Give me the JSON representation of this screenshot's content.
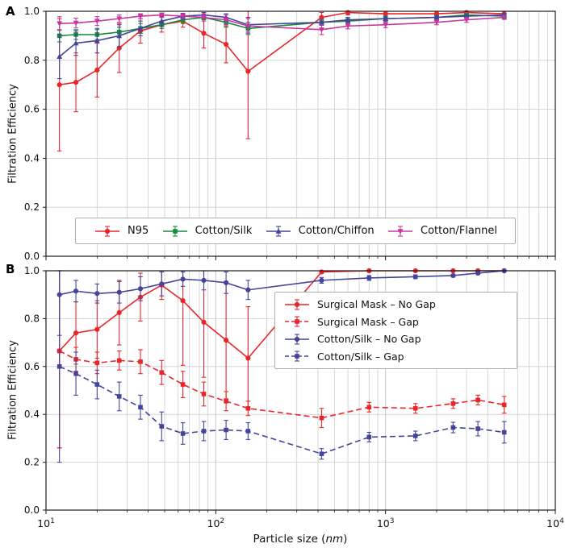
{
  "figure": {
    "panel_a_label": "A",
    "panel_b_label": "B",
    "y_axis_label": "Filtration Efficiency",
    "x_axis_label_prefix": "Particle size (",
    "x_axis_label_unit": "nm",
    "x_axis_label_suffix": ")"
  },
  "chart_data": [
    {
      "type": "line",
      "panel": "A",
      "xscale": "log",
      "xlim": [
        10,
        10000
      ],
      "ylim": [
        0.0,
        1.0
      ],
      "grid": true,
      "legend_position": "inside-bottom-center",
      "yticks": [
        0.0,
        0.2,
        0.4,
        0.6,
        0.8,
        1.0
      ],
      "ytick_labels": [
        "0.0",
        "0.2",
        "0.4",
        "0.6",
        "0.8",
        "1.0"
      ],
      "xticks": [
        10,
        100,
        1000,
        10000
      ],
      "xtick_labels": [
        {
          "base": "10",
          "exp": "1"
        },
        {
          "base": "10",
          "exp": "2"
        },
        {
          "base": "10",
          "exp": "3"
        },
        {
          "base": "10",
          "exp": "4"
        }
      ],
      "show_x_tick_labels": false,
      "series": [
        {
          "name": "N95",
          "color": "#e8262a",
          "marker": "circle",
          "linestyle": "solid",
          "x": [
            12,
            15,
            20,
            27,
            36,
            48,
            64,
            85,
            115,
            155,
            420,
            600,
            1000,
            2000,
            3000,
            5000
          ],
          "y": [
            0.7,
            0.71,
            0.76,
            0.85,
            0.92,
            0.945,
            0.96,
            0.91,
            0.865,
            0.755,
            0.975,
            0.995,
            0.99,
            0.99,
            0.995,
            0.99
          ],
          "yerr": [
            0.27,
            0.12,
            0.11,
            0.1,
            0.05,
            0.03,
            0.025,
            0.06,
            0.075,
            0.275,
            0.02,
            0.01,
            0.005,
            0.005,
            0.005,
            0.01
          ]
        },
        {
          "name": "Cotton/Silk",
          "color": "#168a3d",
          "marker": "square",
          "linestyle": "solid",
          "x": [
            12,
            15,
            20,
            27,
            36,
            48,
            64,
            85,
            115,
            155,
            420,
            600,
            1000,
            2000,
            3000,
            5000
          ],
          "y": [
            0.9,
            0.905,
            0.905,
            0.915,
            0.93,
            0.945,
            0.965,
            0.975,
            0.955,
            0.93,
            0.955,
            0.96,
            0.97,
            0.975,
            0.985,
            0.98
          ],
          "yerr": [
            0.025,
            0.02,
            0.02,
            0.02,
            0.02,
            0.015,
            0.015,
            0.01,
            0.02,
            0.025,
            0.012,
            0.01,
            0.01,
            0.008,
            0.006,
            0.01
          ]
        },
        {
          "name": "Cotton/Chiffon",
          "color": "#45449a",
          "marker": "triangle-up",
          "linestyle": "solid",
          "x": [
            12,
            15,
            20,
            27,
            36,
            48,
            64,
            85,
            115,
            155,
            420,
            600,
            1000,
            2000,
            3000,
            5000
          ],
          "y": [
            0.815,
            0.87,
            0.88,
            0.9,
            0.93,
            0.96,
            0.98,
            0.985,
            0.975,
            0.945,
            0.955,
            0.965,
            0.97,
            0.975,
            0.98,
            0.985
          ],
          "yerr": [
            0.09,
            0.05,
            0.05,
            0.045,
            0.03,
            0.02,
            0.012,
            0.01,
            0.015,
            0.03,
            0.012,
            0.01,
            0.008,
            0.006,
            0.006,
            0.006
          ]
        },
        {
          "name": "Cotton/Flannel",
          "color": "#c4379f",
          "marker": "triangle-down",
          "linestyle": "solid",
          "x": [
            12,
            15,
            20,
            27,
            36,
            48,
            64,
            85,
            115,
            155,
            420,
            600,
            1000,
            2000,
            3000,
            5000
          ],
          "y": [
            0.95,
            0.952,
            0.96,
            0.97,
            0.98,
            0.985,
            0.98,
            0.975,
            0.965,
            0.94,
            0.925,
            0.94,
            0.945,
            0.955,
            0.965,
            0.975
          ],
          "yerr": [
            0.028,
            0.02,
            0.018,
            0.015,
            0.01,
            0.008,
            0.01,
            0.015,
            0.02,
            0.03,
            0.02,
            0.012,
            0.012,
            0.01,
            0.01,
            0.008
          ]
        }
      ]
    },
    {
      "type": "line",
      "panel": "B",
      "xscale": "log",
      "xlim": [
        10,
        10000
      ],
      "ylim": [
        0.0,
        1.0
      ],
      "grid": true,
      "legend_position": "inside-right",
      "yticks": [
        0.0,
        0.2,
        0.4,
        0.6,
        0.8,
        1.0
      ],
      "ytick_labels": [
        "0.0",
        "0.2",
        "0.4",
        "0.6",
        "0.8",
        "1.0"
      ],
      "xticks": [
        10,
        100,
        1000,
        10000
      ],
      "xtick_labels": [
        {
          "base": "10",
          "exp": "1"
        },
        {
          "base": "10",
          "exp": "2"
        },
        {
          "base": "10",
          "exp": "3"
        },
        {
          "base": "10",
          "exp": "4"
        }
      ],
      "show_x_tick_labels": true,
      "series": [
        {
          "name": "Surgical Mask – No Gap",
          "color": "#e8262a",
          "marker": "circle",
          "linestyle": "solid",
          "x": [
            12,
            15,
            20,
            27,
            36,
            48,
            64,
            85,
            115,
            155,
            420,
            800,
            1500,
            2500,
            3500,
            5000
          ],
          "y": [
            0.665,
            0.74,
            0.755,
            0.825,
            0.89,
            0.94,
            0.875,
            0.785,
            0.71,
            0.635,
            0.995,
            1.0,
            1.0,
            1.0,
            1.0,
            1.0
          ],
          "yerr": [
            0.405,
            0.13,
            0.12,
            0.135,
            0.1,
            0.06,
            0.27,
            0.23,
            0.245,
            0.215,
            0.006,
            0.004,
            0.004,
            0.003,
            0.003,
            0.003
          ]
        },
        {
          "name": "Surgical Mask – Gap",
          "color": "#e8262a",
          "marker": "square",
          "linestyle": "dashed",
          "x": [
            12,
            15,
            20,
            27,
            36,
            48,
            64,
            85,
            115,
            155,
            420,
            800,
            1500,
            2500,
            3500,
            5000
          ],
          "y": [
            0.665,
            0.63,
            0.615,
            0.625,
            0.62,
            0.575,
            0.525,
            0.485,
            0.455,
            0.425,
            0.385,
            0.43,
            0.425,
            0.445,
            0.46,
            0.44
          ],
          "yerr": [
            0.405,
            0.05,
            0.045,
            0.04,
            0.05,
            0.05,
            0.055,
            0.05,
            0.04,
            0.03,
            0.04,
            0.02,
            0.02,
            0.02,
            0.02,
            0.035
          ]
        },
        {
          "name": "Cotton/Silk – No Gap",
          "color": "#45449a",
          "marker": "circle",
          "linestyle": "solid",
          "x": [
            12,
            15,
            20,
            27,
            36,
            48,
            64,
            85,
            115,
            155,
            420,
            800,
            1500,
            2500,
            3500,
            5000
          ],
          "y": [
            0.9,
            0.915,
            0.905,
            0.91,
            0.925,
            0.945,
            0.965,
            0.96,
            0.95,
            0.92,
            0.96,
            0.97,
            0.975,
            0.98,
            0.99,
            1.0
          ],
          "yerr": [
            0.17,
            0.045,
            0.04,
            0.045,
            0.05,
            0.05,
            0.03,
            0.04,
            0.045,
            0.04,
            0.012,
            0.01,
            0.008,
            0.006,
            0.005,
            0.003
          ]
        },
        {
          "name": "Cotton/Silk – Gap",
          "color": "#45449a",
          "marker": "square",
          "linestyle": "dashed",
          "x": [
            12,
            15,
            20,
            27,
            36,
            48,
            64,
            85,
            115,
            155,
            420,
            800,
            1500,
            2500,
            3500,
            5000
          ],
          "y": [
            0.6,
            0.57,
            0.525,
            0.475,
            0.43,
            0.35,
            0.32,
            0.33,
            0.335,
            0.33,
            0.235,
            0.305,
            0.31,
            0.345,
            0.34,
            0.325
          ],
          "yerr": [
            0.4,
            0.09,
            0.06,
            0.06,
            0.05,
            0.06,
            0.045,
            0.04,
            0.04,
            0.035,
            0.022,
            0.02,
            0.02,
            0.022,
            0.03,
            0.045
          ]
        }
      ]
    }
  ]
}
